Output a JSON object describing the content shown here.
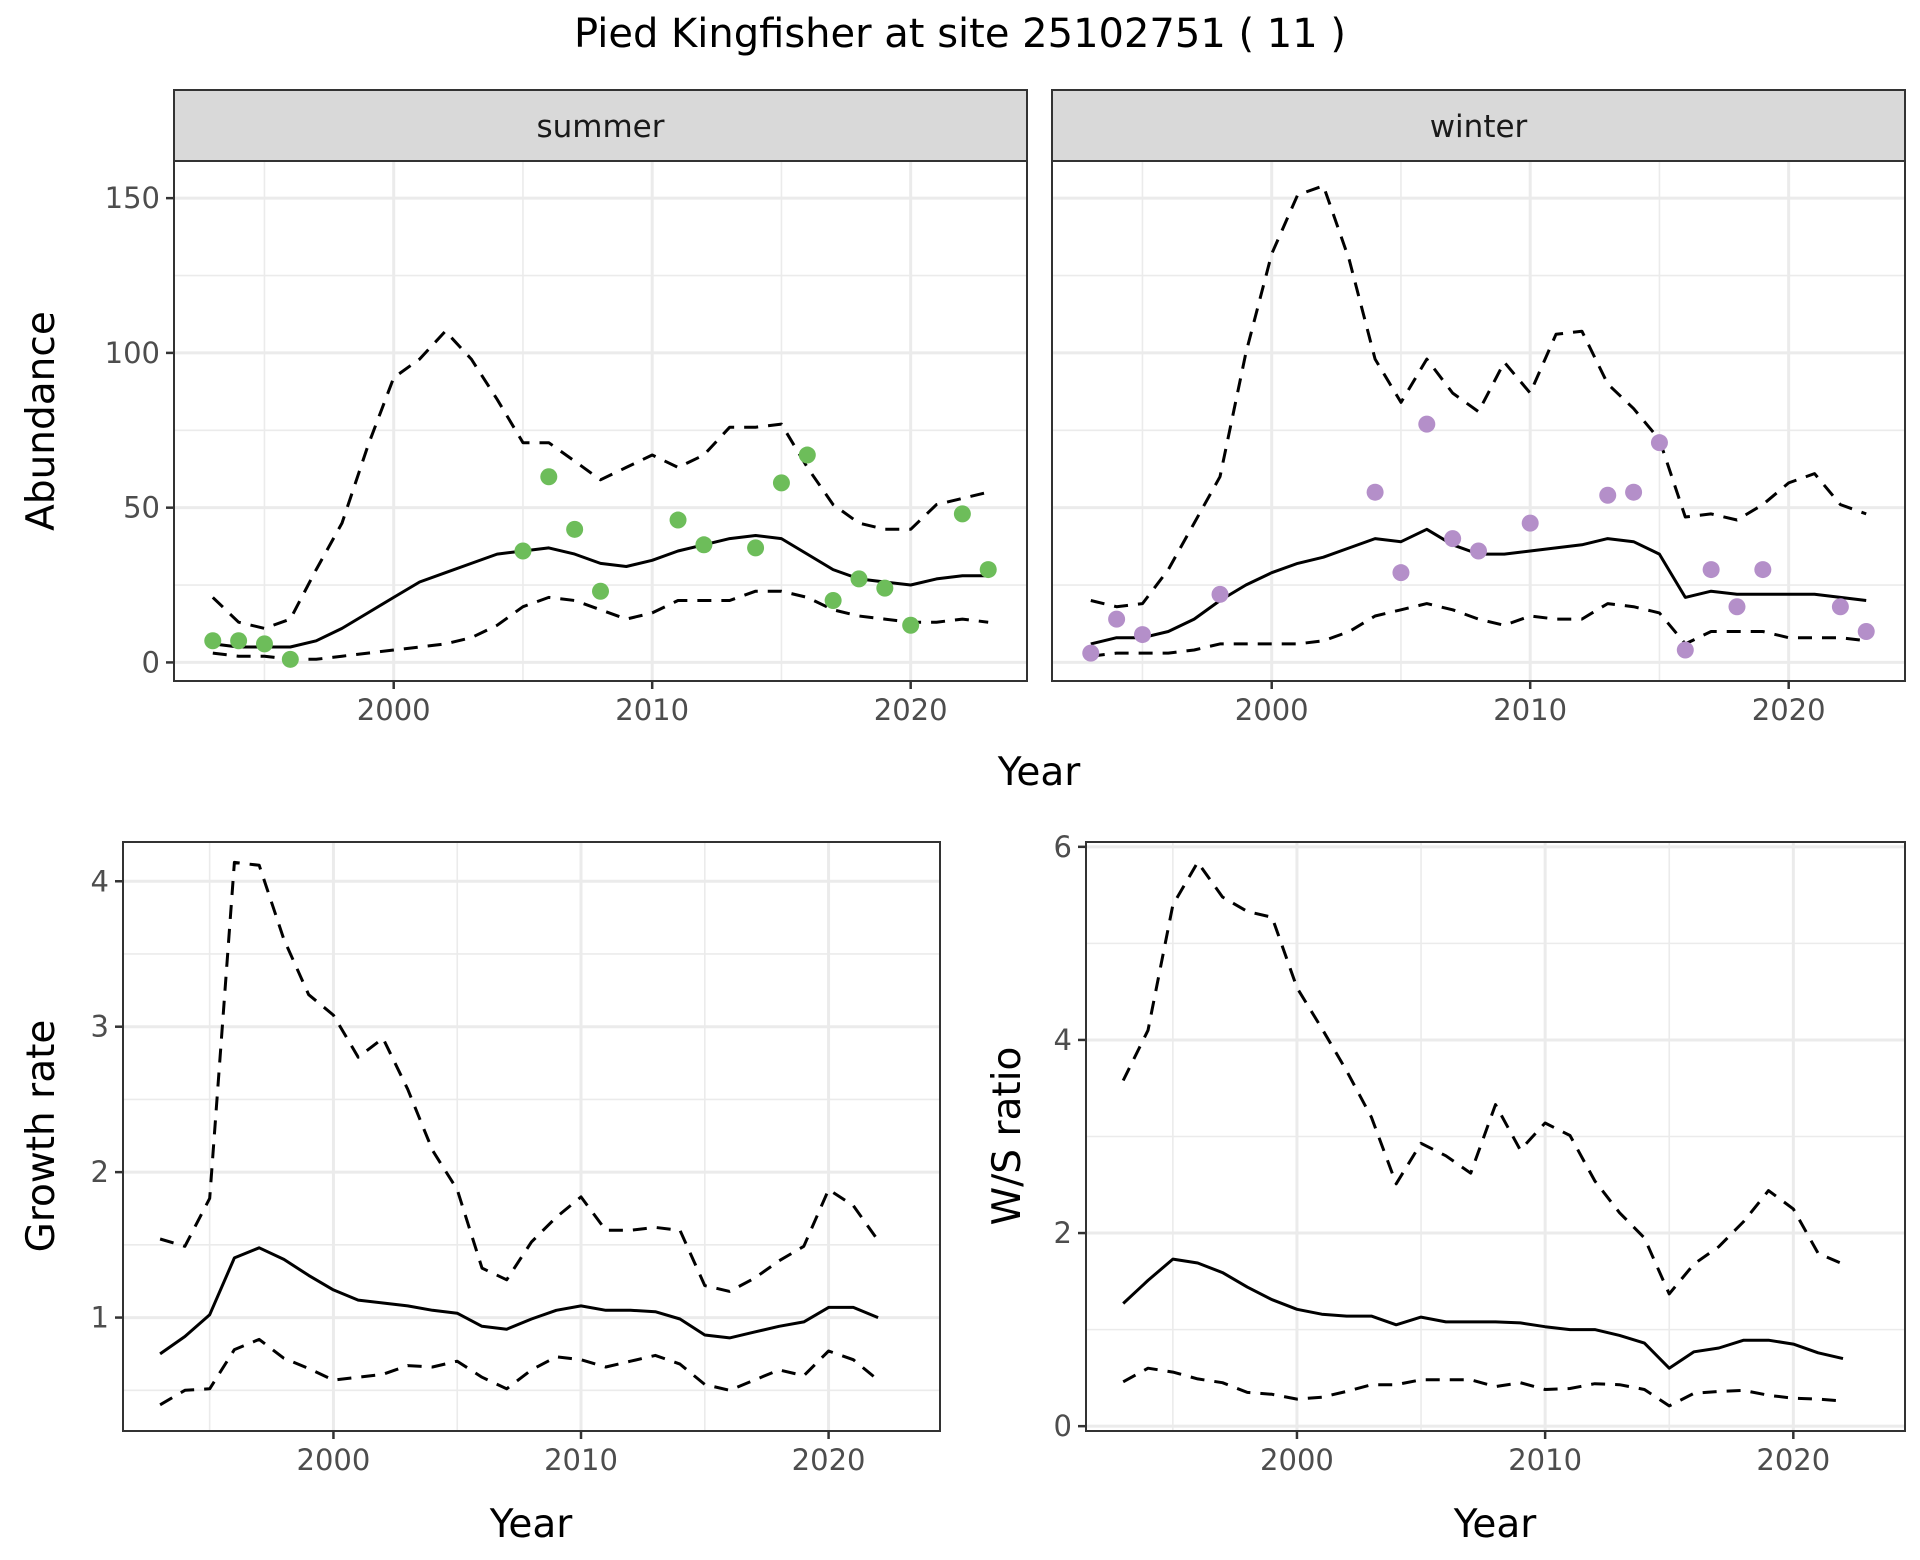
{
  "title": "Pied Kingfisher at site 25102751 ( 11 )",
  "colors": {
    "summer_points": "#6dbd5a",
    "winter_points": "#b48fc9",
    "lines": "#000000",
    "strip_bg": "#d9d9d9",
    "grid": "#ebebeb",
    "panel_border": "#333333",
    "tick_text": "#4d4d4d"
  },
  "chart_data": [
    {
      "type": "line",
      "id": "abundance",
      "title": "",
      "xlabel": "Year",
      "ylabel": "Abundance",
      "ylim": [
        -6,
        162
      ],
      "xlim": [
        1991.5,
        2024.5
      ],
      "yticks": [
        0,
        50,
        100,
        150
      ],
      "xticks": [
        2000,
        2010,
        2020
      ],
      "grid": true,
      "facets": [
        {
          "strip": "summer",
          "points": {
            "x": [
              1993,
              1994,
              1995,
              1996,
              2005,
              2006,
              2007,
              2008,
              2011,
              2012,
              2014,
              2015,
              2016,
              2017,
              2018,
              2019,
              2020,
              2022,
              2023
            ],
            "y": [
              7,
              7,
              6,
              1,
              36,
              60,
              43,
              23,
              46,
              38,
              37,
              58,
              67,
              20,
              27,
              24,
              12,
              48,
              30
            ]
          },
          "series": [
            {
              "name": "median",
              "style": "solid",
              "x": [
                1993,
                1994,
                1995,
                1996,
                1997,
                1998,
                1999,
                2000,
                2001,
                2002,
                2003,
                2004,
                2005,
                2006,
                2007,
                2008,
                2009,
                2010,
                2011,
                2012,
                2013,
                2014,
                2015,
                2016,
                2017,
                2018,
                2019,
                2020,
                2021,
                2022,
                2023
              ],
              "y": [
                6,
                5,
                5,
                5,
                7,
                11,
                16,
                21,
                26,
                29,
                32,
                35,
                36,
                37,
                35,
                32,
                31,
                33,
                36,
                38,
                40,
                41,
                40,
                35,
                30,
                27,
                26,
                25,
                27,
                28,
                28
              ]
            },
            {
              "name": "upper",
              "style": "dashed",
              "x": [
                1993,
                1994,
                1995,
                1996,
                1997,
                1998,
                1999,
                2000,
                2001,
                2002,
                2003,
                2004,
                2005,
                2006,
                2007,
                2008,
                2009,
                2010,
                2011,
                2012,
                2013,
                2014,
                2015,
                2016,
                2017,
                2018,
                2019,
                2020,
                2021,
                2022,
                2023
              ],
              "y": [
                21,
                13,
                11,
                14,
                30,
                45,
                70,
                92,
                98,
                107,
                98,
                85,
                71,
                71,
                65,
                59,
                63,
                67,
                63,
                67,
                76,
                76,
                77,
                63,
                51,
                45,
                43,
                43,
                51,
                53,
                55
              ]
            },
            {
              "name": "lower",
              "style": "dashed",
              "x": [
                1993,
                1994,
                1995,
                1996,
                1997,
                1998,
                1999,
                2000,
                2001,
                2002,
                2003,
                2004,
                2005,
                2006,
                2007,
                2008,
                2009,
                2010,
                2011,
                2012,
                2013,
                2014,
                2015,
                2016,
                2017,
                2018,
                2019,
                2020,
                2021,
                2022,
                2023
              ],
              "y": [
                3,
                2,
                2,
                1,
                1,
                2,
                3,
                4,
                5,
                6,
                8,
                12,
                18,
                21,
                20,
                17,
                14,
                16,
                20,
                20,
                20,
                23,
                23,
                21,
                17,
                15,
                14,
                13,
                13,
                14,
                13
              ]
            }
          ]
        },
        {
          "strip": "winter",
          "points": {
            "x": [
              1993,
              1994,
              1995,
              1998,
              2004,
              2005,
              2006,
              2007,
              2008,
              2010,
              2013,
              2014,
              2015,
              2016,
              2017,
              2018,
              2019,
              2022,
              2023
            ],
            "y": [
              3,
              14,
              9,
              22,
              55,
              29,
              77,
              40,
              36,
              45,
              54,
              55,
              71,
              4,
              30,
              18,
              30,
              18,
              10
            ]
          },
          "series": [
            {
              "name": "median",
              "style": "solid",
              "x": [
                1993,
                1994,
                1995,
                1996,
                1997,
                1998,
                1999,
                2000,
                2001,
                2002,
                2003,
                2004,
                2005,
                2006,
                2007,
                2008,
                2009,
                2010,
                2011,
                2012,
                2013,
                2014,
                2015,
                2016,
                2017,
                2018,
                2019,
                2020,
                2021,
                2022,
                2023
              ],
              "y": [
                6,
                8,
                8,
                10,
                14,
                20,
                25,
                29,
                32,
                34,
                37,
                40,
                39,
                43,
                38,
                35,
                35,
                36,
                37,
                38,
                40,
                39,
                35,
                21,
                23,
                22,
                22,
                22,
                22,
                21,
                20
              ]
            },
            {
              "name": "upper",
              "style": "dashed",
              "x": [
                1993,
                1994,
                1995,
                1996,
                1997,
                1998,
                1999,
                2000,
                2001,
                2002,
                2003,
                2004,
                2005,
                2006,
                2007,
                2008,
                2009,
                2010,
                2011,
                2012,
                2013,
                2014,
                2015,
                2016,
                2017,
                2018,
                2019,
                2020,
                2021,
                2022,
                2023
              ],
              "y": [
                20,
                18,
                19,
                30,
                45,
                60,
                100,
                132,
                151,
                154,
                130,
                98,
                84,
                98,
                87,
                81,
                97,
                87,
                106,
                107,
                90,
                82,
                72,
                47,
                48,
                46,
                51,
                58,
                61,
                51,
                48
              ]
            },
            {
              "name": "lower",
              "style": "dashed",
              "x": [
                1993,
                1994,
                1995,
                1996,
                1997,
                1998,
                1999,
                2000,
                2001,
                2002,
                2003,
                2004,
                2005,
                2006,
                2007,
                2008,
                2009,
                2010,
                2011,
                2012,
                2013,
                2014,
                2015,
                2016,
                2017,
                2018,
                2019,
                2020,
                2021,
                2022,
                2023
              ],
              "y": [
                2,
                3,
                3,
                3,
                4,
                6,
                6,
                6,
                6,
                7,
                10,
                15,
                17,
                19,
                17,
                14,
                12,
                15,
                14,
                14,
                19,
                18,
                16,
                6,
                10,
                10,
                10,
                8,
                8,
                8,
                7
              ]
            }
          ]
        }
      ]
    },
    {
      "type": "line",
      "id": "growth",
      "title": "",
      "xlabel": "Year",
      "ylabel": "Growth rate",
      "ylim": [
        0.22,
        4.27
      ],
      "xlim": [
        1991.5,
        2024.5
      ],
      "yticks": [
        1,
        2,
        3,
        4
      ],
      "minor_yticks": [
        0.5,
        1.5,
        2.5,
        3.5
      ],
      "xticks": [
        2000,
        2010,
        2020
      ],
      "grid": true,
      "series": [
        {
          "name": "median",
          "style": "solid",
          "x": [
            1993,
            1994,
            1995,
            1996,
            1997,
            1998,
            1999,
            2000,
            2001,
            2002,
            2003,
            2004,
            2005,
            2006,
            2007,
            2008,
            2009,
            2010,
            2011,
            2012,
            2013,
            2014,
            2015,
            2016,
            2017,
            2018,
            2019,
            2020,
            2021,
            2022
          ],
          "y": [
            0.75,
            0.87,
            1.02,
            1.41,
            1.48,
            1.4,
            1.29,
            1.19,
            1.12,
            1.1,
            1.08,
            1.05,
            1.03,
            0.94,
            0.92,
            0.99,
            1.05,
            1.08,
            1.05,
            1.05,
            1.04,
            0.99,
            0.88,
            0.86,
            0.9,
            0.94,
            0.97,
            1.07,
            1.07,
            1.0
          ]
        },
        {
          "name": "upper",
          "style": "dashed",
          "x": [
            1993,
            1994,
            1995,
            1996,
            1997,
            1998,
            1999,
            2000,
            2001,
            2002,
            2003,
            2004,
            2005,
            2006,
            2007,
            2008,
            2009,
            2010,
            2011,
            2012,
            2013,
            2014,
            2015,
            2016,
            2017,
            2018,
            2019,
            2020,
            2021,
            2022
          ],
          "y": [
            1.54,
            1.49,
            1.82,
            4.13,
            4.11,
            3.6,
            3.22,
            3.08,
            2.79,
            2.92,
            2.57,
            2.15,
            1.88,
            1.34,
            1.26,
            1.52,
            1.69,
            1.83,
            1.6,
            1.6,
            1.62,
            1.6,
            1.22,
            1.18,
            1.27,
            1.39,
            1.49,
            1.88,
            1.77,
            1.53
          ]
        },
        {
          "name": "lower",
          "style": "dashed",
          "x": [
            1993,
            1994,
            1995,
            1996,
            1997,
            1998,
            1999,
            2000,
            2001,
            2002,
            2003,
            2004,
            2005,
            2006,
            2007,
            2008,
            2009,
            2010,
            2011,
            2012,
            2013,
            2014,
            2015,
            2016,
            2017,
            2018,
            2019,
            2020,
            2021,
            2022
          ],
          "y": [
            0.4,
            0.5,
            0.51,
            0.78,
            0.85,
            0.72,
            0.65,
            0.57,
            0.59,
            0.61,
            0.67,
            0.66,
            0.7,
            0.59,
            0.51,
            0.64,
            0.73,
            0.71,
            0.66,
            0.7,
            0.74,
            0.68,
            0.54,
            0.5,
            0.57,
            0.64,
            0.6,
            0.77,
            0.71,
            0.57
          ]
        }
      ]
    },
    {
      "type": "line",
      "id": "ws_ratio",
      "title": "",
      "xlabel": "Year",
      "ylabel": "W/S ratio",
      "ylim": [
        -0.05,
        6.05
      ],
      "xlim": [
        1991.5,
        2024.5
      ],
      "yticks": [
        0,
        2,
        4,
        6
      ],
      "minor_yticks": [
        1,
        3,
        5
      ],
      "xticks": [
        2000,
        2010,
        2020
      ],
      "grid": true,
      "series": [
        {
          "name": "median",
          "style": "solid",
          "x": [
            1993,
            1994,
            1995,
            1996,
            1997,
            1998,
            1999,
            2000,
            2001,
            2002,
            2003,
            2004,
            2005,
            2006,
            2007,
            2008,
            2009,
            2010,
            2011,
            2012,
            2013,
            2014,
            2015,
            2016,
            2017,
            2018,
            2019,
            2020,
            2021,
            2022
          ],
          "y": [
            1.27,
            1.51,
            1.73,
            1.69,
            1.59,
            1.44,
            1.31,
            1.21,
            1.16,
            1.14,
            1.14,
            1.05,
            1.13,
            1.08,
            1.08,
            1.08,
            1.07,
            1.03,
            1.0,
            1.0,
            0.94,
            0.86,
            0.6,
            0.77,
            0.81,
            0.89,
            0.89,
            0.85,
            0.76,
            0.7
          ]
        },
        {
          "name": "upper",
          "style": "dashed",
          "x": [
            1993,
            1994,
            1995,
            1996,
            1997,
            1998,
            1999,
            2000,
            2001,
            2002,
            2003,
            2004,
            2005,
            2006,
            2007,
            2008,
            2009,
            2010,
            2011,
            2012,
            2013,
            2014,
            2015,
            2016,
            2017,
            2018,
            2019,
            2020,
            2021,
            2022
          ],
          "y": [
            3.58,
            4.1,
            5.4,
            5.84,
            5.48,
            5.33,
            5.27,
            4.54,
            4.12,
            3.68,
            3.2,
            2.51,
            2.93,
            2.8,
            2.62,
            3.33,
            2.86,
            3.14,
            3.01,
            2.54,
            2.21,
            1.95,
            1.37,
            1.68,
            1.86,
            2.12,
            2.44,
            2.25,
            1.79,
            1.68
          ]
        },
        {
          "name": "lower",
          "style": "dashed",
          "x": [
            1993,
            1994,
            1995,
            1996,
            1997,
            1998,
            1999,
            2000,
            2001,
            2002,
            2003,
            2004,
            2005,
            2006,
            2007,
            2008,
            2009,
            2010,
            2011,
            2012,
            2013,
            2014,
            2015,
            2016,
            2017,
            2018,
            2019,
            2020,
            2021,
            2022
          ],
          "y": [
            0.46,
            0.6,
            0.56,
            0.49,
            0.45,
            0.35,
            0.33,
            0.28,
            0.3,
            0.36,
            0.43,
            0.43,
            0.48,
            0.48,
            0.48,
            0.41,
            0.45,
            0.38,
            0.39,
            0.44,
            0.43,
            0.38,
            0.21,
            0.34,
            0.36,
            0.37,
            0.32,
            0.29,
            0.28,
            0.26
          ]
        }
      ]
    }
  ]
}
